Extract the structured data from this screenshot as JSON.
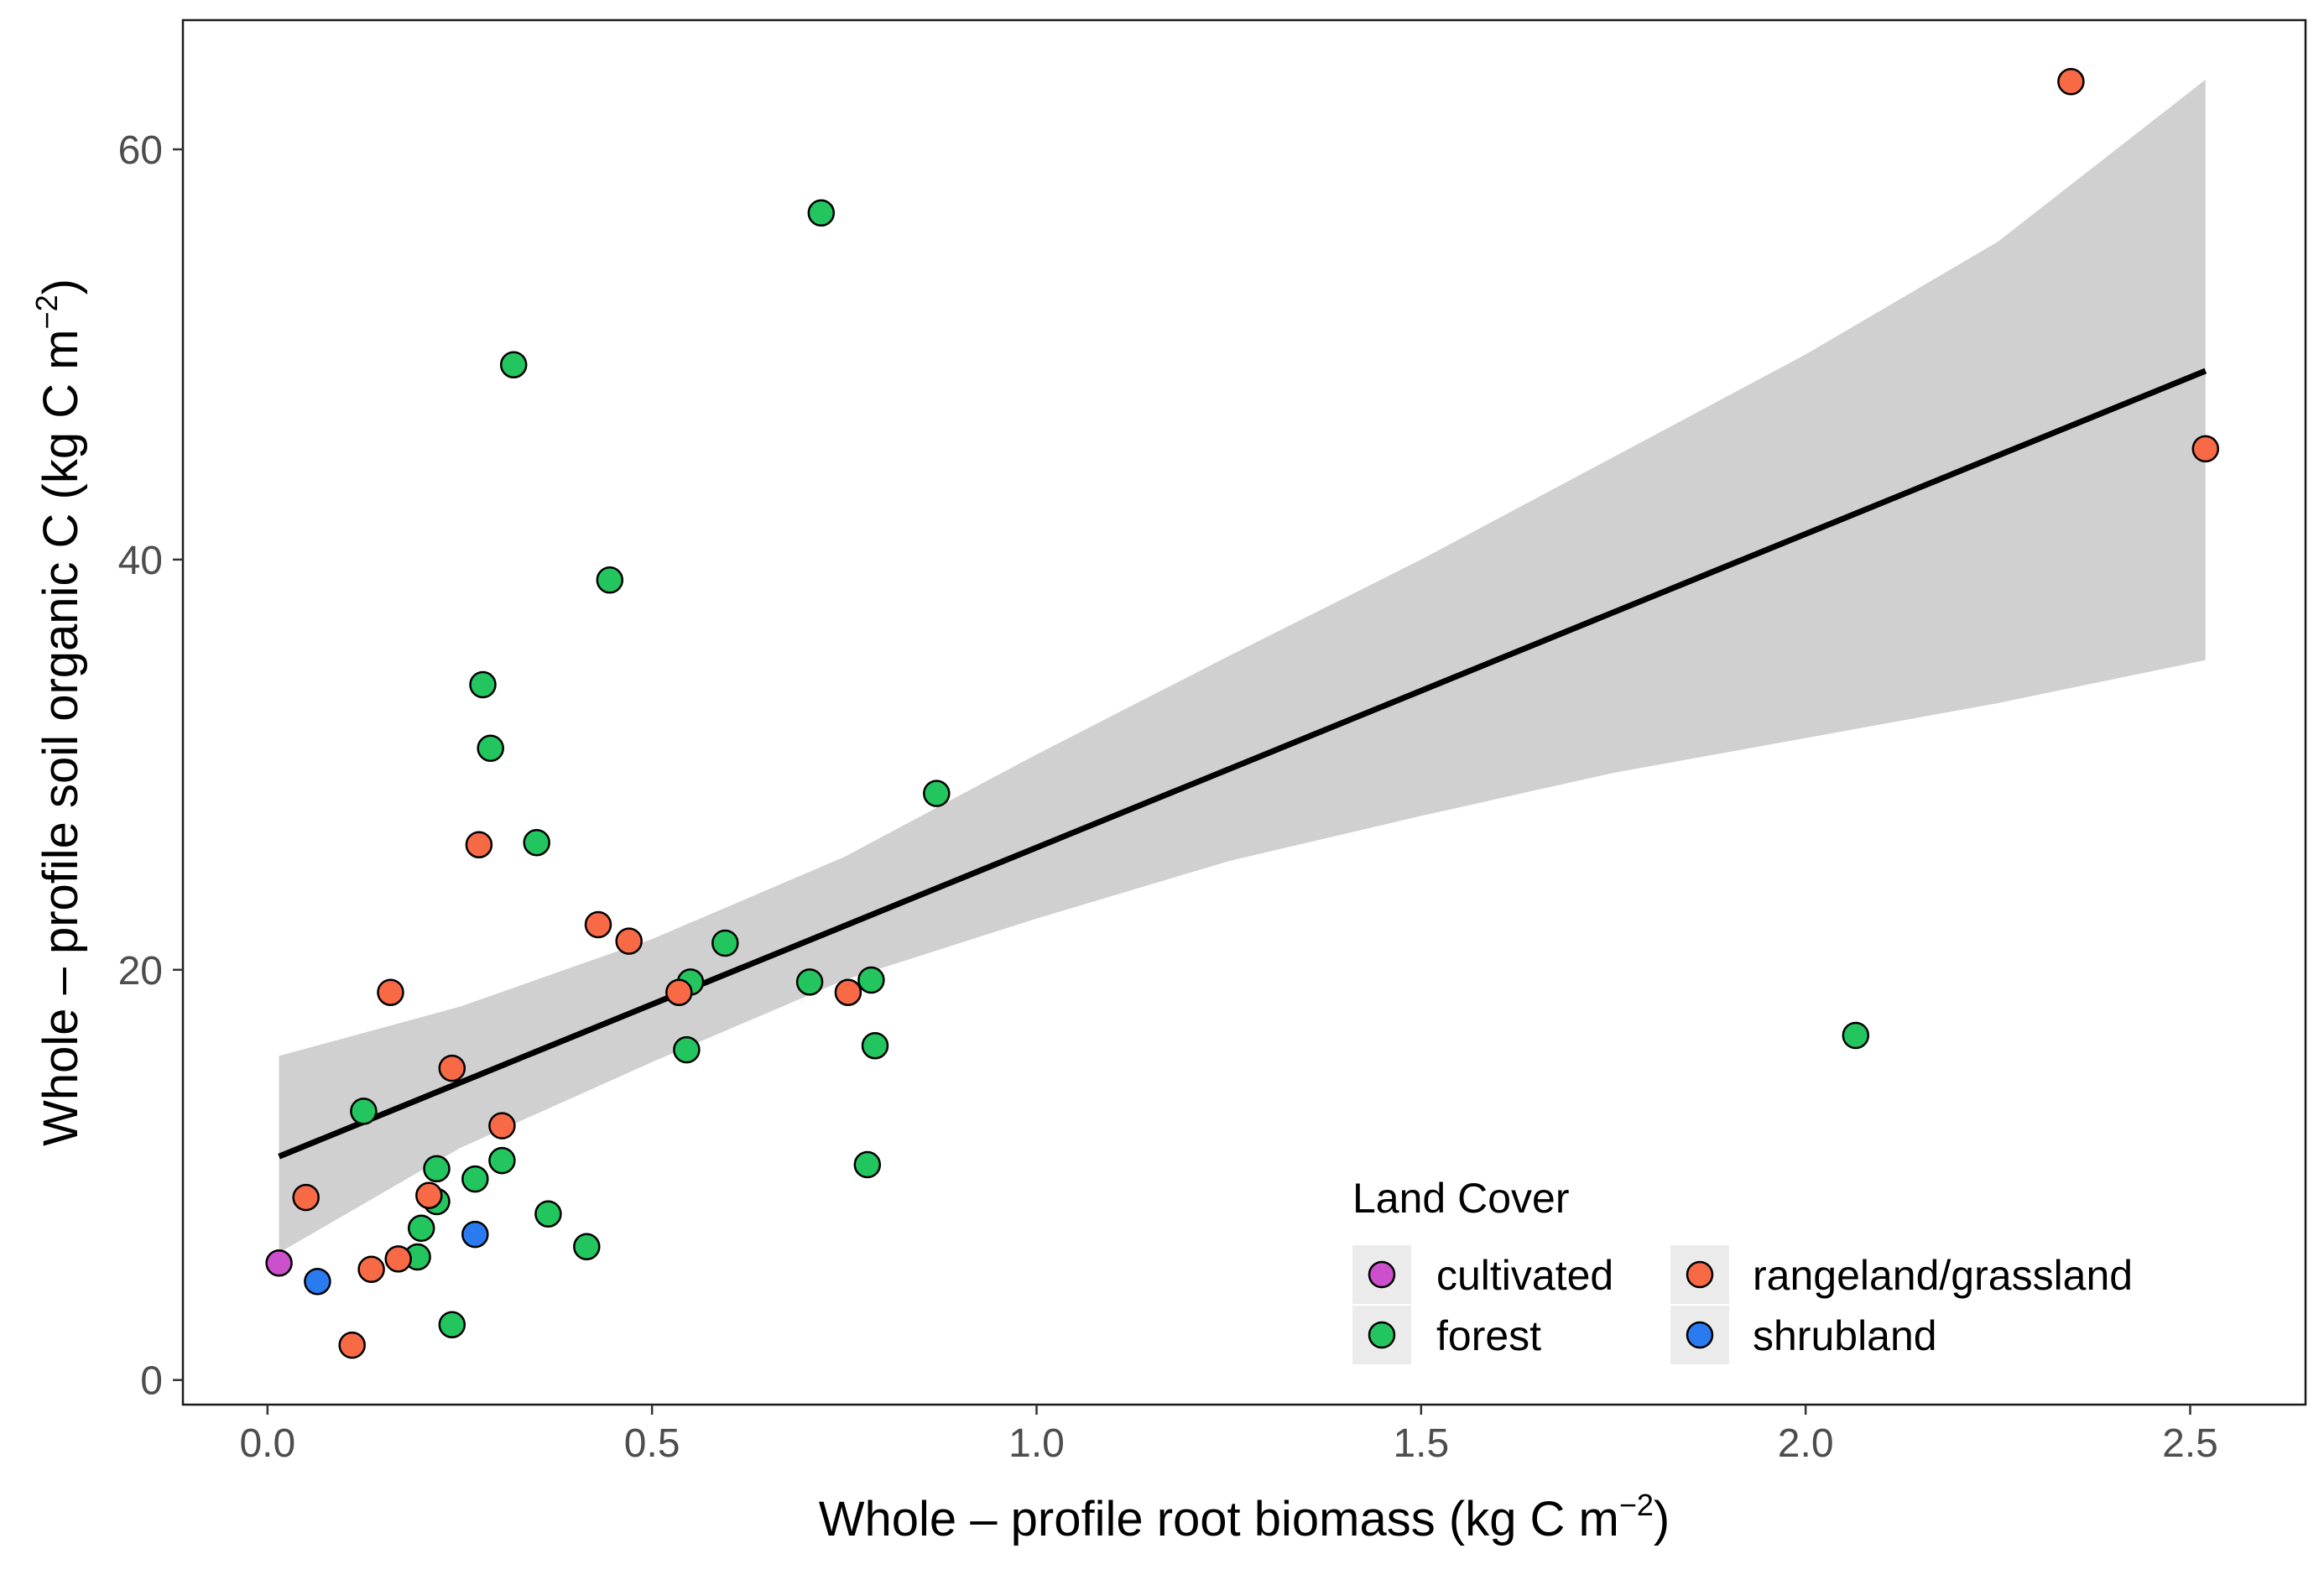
{
  "chart_data": {
    "type": "scatter",
    "xlabel": {
      "main": "Whole – profile root biomass ",
      "unit_pre": "(kg C m",
      "sup": "−2",
      "unit_post": ")"
    },
    "ylabel": {
      "main": "Whole – profile soil organic C ",
      "unit_pre": "(kg C m",
      "sup": "−2",
      "unit_post": ")"
    },
    "xlim": [
      -0.11,
      2.65
    ],
    "ylim": [
      -1.2,
      66.3
    ],
    "x_ticks": [
      {
        "value": 0.0,
        "label": "0.0"
      },
      {
        "value": 0.5,
        "label": "0.5"
      },
      {
        "value": 1.0,
        "label": "1.0"
      },
      {
        "value": 1.5,
        "label": "1.5"
      },
      {
        "value": 2.0,
        "label": "2.0"
      },
      {
        "value": 2.5,
        "label": "2.5"
      }
    ],
    "y_ticks": [
      {
        "value": 0,
        "label": "0"
      },
      {
        "value": 20,
        "label": "20"
      },
      {
        "value": 40,
        "label": "40"
      },
      {
        "value": 60,
        "label": "60"
      }
    ],
    "grid": false,
    "legend": {
      "title": "Land Cover",
      "placement": "bottom-right",
      "entries": [
        {
          "label": "cultivated",
          "color": "#CC4FCC"
        },
        {
          "label": "forest",
          "color": "#22C55E"
        },
        {
          "label": "rangeland/grassland",
          "color": "#F76A45"
        },
        {
          "label": "shrubland",
          "color": "#2B7BF0"
        }
      ]
    },
    "colors": {
      "cultivated": "#CC4FCC",
      "forest": "#22C55E",
      "rangeland/grassland": "#F76A45",
      "shrubland": "#2B7BF0",
      "fit_line": "#000000",
      "confidence_band": "#D0D0D0"
    },
    "fit_line": {
      "x": [
        0.015,
        2.52
      ],
      "y": [
        10.9,
        49.2
      ]
    },
    "confidence_band": {
      "x": [
        0.015,
        0.25,
        0.5,
        0.75,
        1.0,
        1.25,
        1.5,
        1.75,
        2.0,
        2.25,
        2.52
      ],
      "upper": [
        15.8,
        18.2,
        21.5,
        25.5,
        30.5,
        35.3,
        40.0,
        45.0,
        50.0,
        55.5,
        63.4
      ],
      "lower": [
        6.2,
        11.3,
        15.5,
        19.5,
        22.5,
        25.3,
        27.5,
        29.6,
        31.3,
        33.0,
        35.1
      ]
    },
    "series": [
      {
        "name": "cultivated",
        "points": [
          [
            0.015,
            5.7
          ]
        ]
      },
      {
        "name": "forest",
        "points": [
          [
            0.72,
            56.9
          ],
          [
            0.32,
            49.5
          ],
          [
            0.445,
            39.0
          ],
          [
            0.28,
            33.9
          ],
          [
            0.29,
            30.8
          ],
          [
            0.35,
            26.2
          ],
          [
            0.87,
            28.6
          ],
          [
            0.595,
            21.3
          ],
          [
            0.55,
            19.4
          ],
          [
            0.705,
            19.4
          ],
          [
            0.785,
            19.5
          ],
          [
            0.545,
            16.1
          ],
          [
            0.79,
            16.3
          ],
          [
            2.065,
            16.8
          ],
          [
            0.125,
            13.1
          ],
          [
            0.78,
            10.5
          ],
          [
            0.305,
            10.7
          ],
          [
            0.22,
            10.3
          ],
          [
            0.27,
            9.8
          ],
          [
            0.22,
            8.7
          ],
          [
            0.365,
            8.1
          ],
          [
            0.2,
            7.4
          ],
          [
            0.415,
            6.5
          ],
          [
            0.195,
            6.0
          ],
          [
            0.24,
            2.7
          ]
        ]
      },
      {
        "name": "rangeland/grassland",
        "points": [
          [
            2.345,
            63.3
          ],
          [
            2.52,
            45.4
          ],
          [
            0.275,
            26.1
          ],
          [
            0.43,
            22.2
          ],
          [
            0.47,
            21.4
          ],
          [
            0.16,
            18.9
          ],
          [
            0.535,
            18.9
          ],
          [
            0.755,
            18.9
          ],
          [
            0.24,
            15.2
          ],
          [
            0.305,
            12.4
          ],
          [
            0.05,
            8.9
          ],
          [
            0.21,
            9.0
          ],
          [
            0.17,
            5.9
          ],
          [
            0.135,
            5.4
          ],
          [
            0.11,
            1.7
          ]
        ]
      },
      {
        "name": "shrubland",
        "points": [
          [
            0.27,
            7.1
          ],
          [
            0.065,
            4.8
          ]
        ]
      }
    ]
  }
}
